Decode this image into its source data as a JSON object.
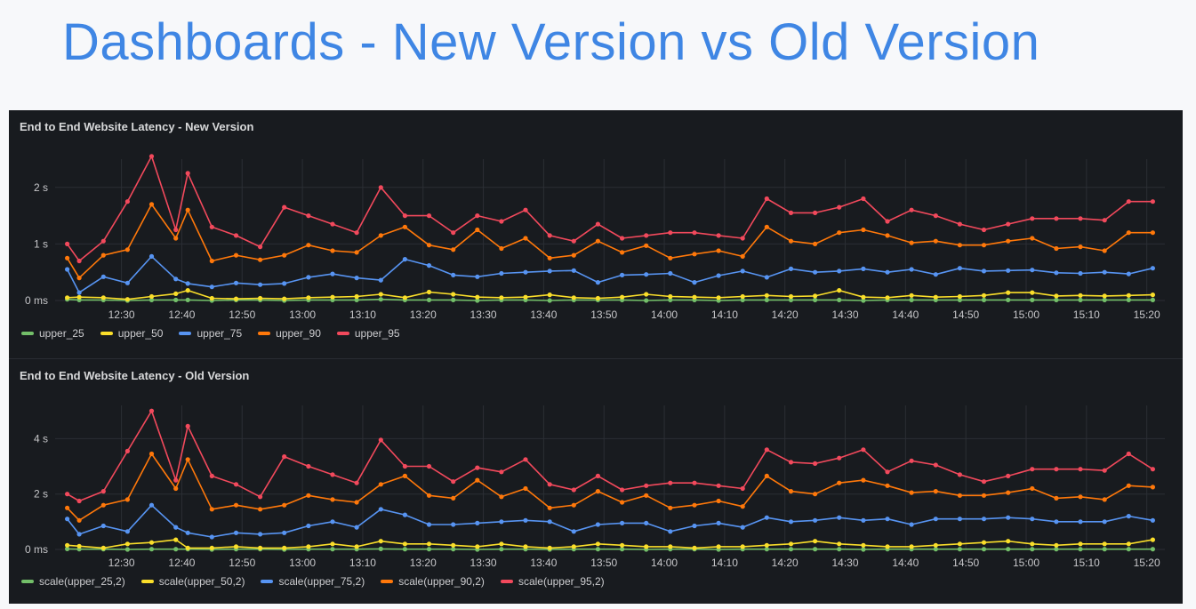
{
  "slide_title": "Dashboards - New Version vs Old Version",
  "chart_data": [
    {
      "type": "line",
      "title": "End to End Website Latency - New Version",
      "xlabel": "",
      "ylabel": "",
      "x_tick_labels": [
        "12:30",
        "12:40",
        "12:50",
        "13:00",
        "13:10",
        "13:20",
        "13:30",
        "13:40",
        "13:50",
        "14:00",
        "14:10",
        "14:20",
        "14:30",
        "14:40",
        "14:50",
        "15:00",
        "15:10",
        "15:20"
      ],
      "x": [
        "12:21",
        "12:23",
        "12:27",
        "12:31",
        "12:35",
        "12:39",
        "12:41",
        "12:45",
        "12:49",
        "12:53",
        "12:57",
        "13:01",
        "13:05",
        "13:09",
        "13:13",
        "13:17",
        "13:21",
        "13:25",
        "13:29",
        "13:33",
        "13:37",
        "13:41",
        "13:45",
        "13:49",
        "13:53",
        "13:57",
        "14:01",
        "14:05",
        "14:09",
        "14:13",
        "14:17",
        "14:21",
        "14:25",
        "14:29",
        "14:33",
        "14:37",
        "14:41",
        "14:45",
        "14:49",
        "14:53",
        "14:57",
        "15:01",
        "15:05",
        "15:09",
        "15:13",
        "15:17",
        "15:21"
      ],
      "y_tick_labels": [
        "0 ms",
        "1 s",
        "2 s"
      ],
      "ylim": [
        0,
        2.5
      ],
      "grid": true,
      "legend_position": "bottom-left",
      "series": [
        {
          "name": "upper_25",
          "color": "#73bf69",
          "values": [
            0.02,
            0.01,
            0.01,
            0.0,
            0.01,
            0.01,
            0.01,
            0.0,
            0.01,
            0.01,
            0.0,
            0.01,
            0.01,
            0.01,
            0.02,
            0.01,
            0.01,
            0.01,
            0.0,
            0.01,
            0.01,
            0.0,
            0.01,
            0.01,
            0.01,
            0.0,
            0.01,
            0.01,
            0.0,
            0.01,
            0.01,
            0.01,
            0.01,
            0.01,
            0.0,
            0.01,
            0.01,
            0.01,
            0.01,
            0.01,
            0.01,
            0.01,
            0.01,
            0.01,
            0.01,
            0.01,
            0.01
          ]
        },
        {
          "name": "upper_50",
          "color": "#fade2a",
          "values": [
            0.05,
            0.06,
            0.05,
            0.02,
            0.07,
            0.12,
            0.18,
            0.04,
            0.03,
            0.04,
            0.03,
            0.05,
            0.06,
            0.07,
            0.11,
            0.05,
            0.15,
            0.11,
            0.06,
            0.05,
            0.06,
            0.1,
            0.05,
            0.04,
            0.06,
            0.11,
            0.07,
            0.06,
            0.05,
            0.07,
            0.09,
            0.07,
            0.08,
            0.18,
            0.06,
            0.05,
            0.09,
            0.06,
            0.07,
            0.09,
            0.14,
            0.14,
            0.08,
            0.09,
            0.08,
            0.09,
            0.1
          ]
        },
        {
          "name": "upper_75",
          "color": "#5794f2",
          "values": [
            0.55,
            0.14,
            0.42,
            0.31,
            0.78,
            0.38,
            0.3,
            0.24,
            0.31,
            0.28,
            0.3,
            0.41,
            0.47,
            0.4,
            0.36,
            0.73,
            0.62,
            0.45,
            0.42,
            0.48,
            0.5,
            0.52,
            0.53,
            0.32,
            0.45,
            0.46,
            0.48,
            0.32,
            0.44,
            0.52,
            0.41,
            0.56,
            0.5,
            0.52,
            0.56,
            0.5,
            0.55,
            0.46,
            0.57,
            0.52,
            0.53,
            0.54,
            0.49,
            0.48,
            0.5,
            0.47,
            0.57
          ]
        },
        {
          "name": "upper_90",
          "color": "#ff780a",
          "values": [
            0.75,
            0.4,
            0.8,
            0.9,
            1.7,
            1.1,
            1.6,
            0.7,
            0.8,
            0.72,
            0.8,
            0.98,
            0.88,
            0.85,
            1.15,
            1.3,
            0.98,
            0.9,
            1.25,
            0.92,
            1.1,
            0.75,
            0.8,
            1.05,
            0.85,
            0.97,
            0.75,
            0.82,
            0.88,
            0.78,
            1.3,
            1.05,
            1.0,
            1.2,
            1.25,
            1.15,
            1.02,
            1.05,
            0.98,
            0.98,
            1.05,
            1.1,
            0.92,
            0.95,
            0.88,
            1.2,
            1.2
          ]
        },
        {
          "name": "upper_95",
          "color": "#f2495c",
          "values": [
            1.0,
            0.7,
            1.05,
            1.75,
            2.55,
            1.25,
            2.25,
            1.3,
            1.15,
            0.95,
            1.65,
            1.5,
            1.35,
            1.2,
            2.0,
            1.5,
            1.5,
            1.2,
            1.5,
            1.4,
            1.6,
            1.15,
            1.05,
            1.35,
            1.1,
            1.15,
            1.2,
            1.2,
            1.15,
            1.1,
            1.8,
            1.55,
            1.55,
            1.65,
            1.8,
            1.4,
            1.6,
            1.5,
            1.35,
            1.25,
            1.35,
            1.45,
            1.45,
            1.45,
            1.42,
            1.75,
            1.75
          ]
        }
      ]
    },
    {
      "type": "line",
      "title": "End to End Website Latency - Old Version",
      "xlabel": "",
      "ylabel": "",
      "x_tick_labels": [
        "12:30",
        "12:40",
        "12:50",
        "13:00",
        "13:10",
        "13:20",
        "13:30",
        "13:40",
        "13:50",
        "14:00",
        "14:10",
        "14:20",
        "14:30",
        "14:40",
        "14:50",
        "15:00",
        "15:10",
        "15:20"
      ],
      "x": [
        "12:21",
        "12:23",
        "12:27",
        "12:31",
        "12:35",
        "12:39",
        "12:41",
        "12:45",
        "12:49",
        "12:53",
        "12:57",
        "13:01",
        "13:05",
        "13:09",
        "13:13",
        "13:17",
        "13:21",
        "13:25",
        "13:29",
        "13:33",
        "13:37",
        "13:41",
        "13:45",
        "13:49",
        "13:53",
        "13:57",
        "14:01",
        "14:05",
        "14:09",
        "14:13",
        "14:17",
        "14:21",
        "14:25",
        "14:29",
        "14:33",
        "14:37",
        "14:41",
        "14:45",
        "14:49",
        "14:53",
        "14:57",
        "15:01",
        "15:05",
        "15:09",
        "15:13",
        "15:17",
        "15:21"
      ],
      "y_tick_labels": [
        "0 ms",
        "2 s",
        "4 s"
      ],
      "ylim": [
        0,
        5.2
      ],
      "grid": true,
      "legend_position": "bottom-left",
      "series": [
        {
          "name": "scale(upper_25,2)",
          "color": "#73bf69",
          "values": [
            0.02,
            0.01,
            0.01,
            0.0,
            0.01,
            0.01,
            0.01,
            0.0,
            0.01,
            0.01,
            0.0,
            0.01,
            0.01,
            0.01,
            0.02,
            0.01,
            0.01,
            0.01,
            0.0,
            0.01,
            0.01,
            0.0,
            0.01,
            0.01,
            0.01,
            0.0,
            0.01,
            0.01,
            0.0,
            0.01,
            0.01,
            0.01,
            0.01,
            0.01,
            0.0,
            0.01,
            0.01,
            0.01,
            0.01,
            0.01,
            0.01,
            0.01,
            0.01,
            0.01,
            0.01,
            0.01,
            0.01
          ]
        },
        {
          "name": "scale(upper_50,2)",
          "color": "#fade2a",
          "values": [
            0.15,
            0.12,
            0.05,
            0.2,
            0.25,
            0.35,
            0.05,
            0.05,
            0.1,
            0.05,
            0.05,
            0.1,
            0.2,
            0.1,
            0.3,
            0.2,
            0.2,
            0.15,
            0.1,
            0.2,
            0.1,
            0.05,
            0.1,
            0.2,
            0.15,
            0.1,
            0.1,
            0.05,
            0.1,
            0.1,
            0.15,
            0.2,
            0.3,
            0.2,
            0.15,
            0.1,
            0.1,
            0.15,
            0.2,
            0.25,
            0.3,
            0.2,
            0.15,
            0.2,
            0.2,
            0.2,
            0.35
          ]
        },
        {
          "name": "scale(upper_75,2)",
          "color": "#5794f2",
          "values": [
            1.1,
            0.55,
            0.85,
            0.65,
            1.6,
            0.8,
            0.6,
            0.45,
            0.6,
            0.55,
            0.6,
            0.85,
            1.0,
            0.8,
            1.45,
            1.25,
            0.9,
            0.9,
            0.95,
            1.0,
            1.05,
            1.0,
            0.65,
            0.9,
            0.95,
            0.95,
            0.65,
            0.85,
            0.95,
            0.8,
            1.15,
            1.0,
            1.05,
            1.15,
            1.05,
            1.1,
            0.9,
            1.1,
            1.1,
            1.1,
            1.15,
            1.1,
            1.0,
            1.0,
            1.0,
            1.2,
            1.05
          ]
        },
        {
          "name": "scale(upper_90,2)",
          "color": "#ff780a",
          "values": [
            1.5,
            1.05,
            1.6,
            1.8,
            3.45,
            2.2,
            3.25,
            1.45,
            1.6,
            1.45,
            1.6,
            1.95,
            1.8,
            1.7,
            2.35,
            2.65,
            1.95,
            1.85,
            2.5,
            1.9,
            2.2,
            1.5,
            1.6,
            2.1,
            1.7,
            1.95,
            1.5,
            1.6,
            1.75,
            1.55,
            2.65,
            2.1,
            2.0,
            2.4,
            2.5,
            2.3,
            2.05,
            2.1,
            1.95,
            1.95,
            2.05,
            2.2,
            1.85,
            1.9,
            1.8,
            2.3,
            2.25
          ]
        },
        {
          "name": "scale(upper_95,2)",
          "color": "#f2495c",
          "values": [
            2.0,
            1.75,
            2.1,
            3.55,
            5.0,
            2.5,
            4.45,
            2.65,
            2.35,
            1.9,
            3.35,
            3.0,
            2.7,
            2.4,
            3.95,
            3.0,
            3.0,
            2.45,
            2.95,
            2.8,
            3.25,
            2.35,
            2.15,
            2.65,
            2.15,
            2.3,
            2.4,
            2.4,
            2.3,
            2.2,
            3.6,
            3.15,
            3.1,
            3.3,
            3.6,
            2.8,
            3.2,
            3.05,
            2.7,
            2.45,
            2.65,
            2.9,
            2.9,
            2.9,
            2.85,
            3.45,
            2.9
          ]
        }
      ]
    }
  ]
}
